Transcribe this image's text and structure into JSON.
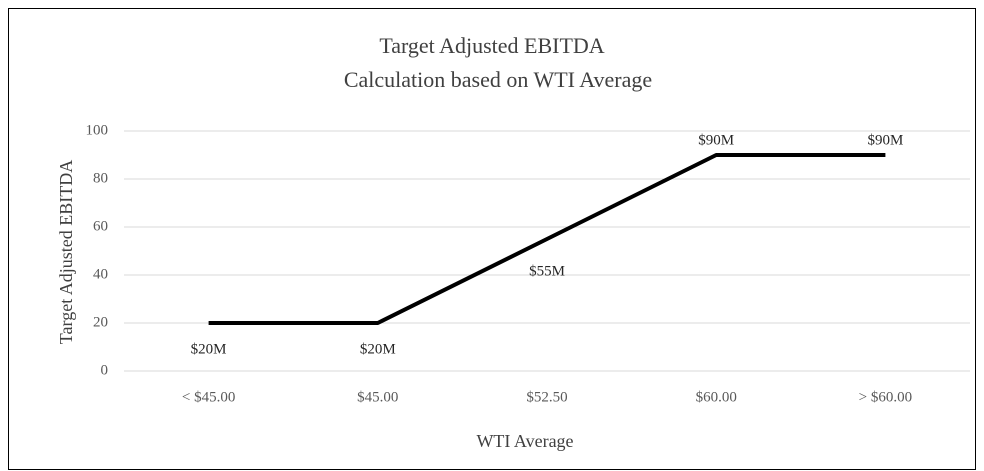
{
  "chart_data": {
    "type": "line",
    "title": "Target Adjusted EBITDA",
    "subtitle": "Calculation based on WTI Average",
    "x_label": "WTI Average",
    "y_label": "Target Adjusted EBITDA",
    "categories": [
      "< $45.00",
      "$45.00",
      "$52.50",
      "$60.00",
      "> $60.00"
    ],
    "values": [
      20,
      20,
      55,
      90,
      90
    ],
    "value_labels": [
      "$20M",
      "$20M",
      "$55M",
      "$90M",
      "$90M"
    ],
    "color": "#000000",
    "ylim": [
      0,
      100
    ],
    "yticks": [
      0,
      20,
      40,
      60,
      80,
      100
    ],
    "grid": true
  }
}
